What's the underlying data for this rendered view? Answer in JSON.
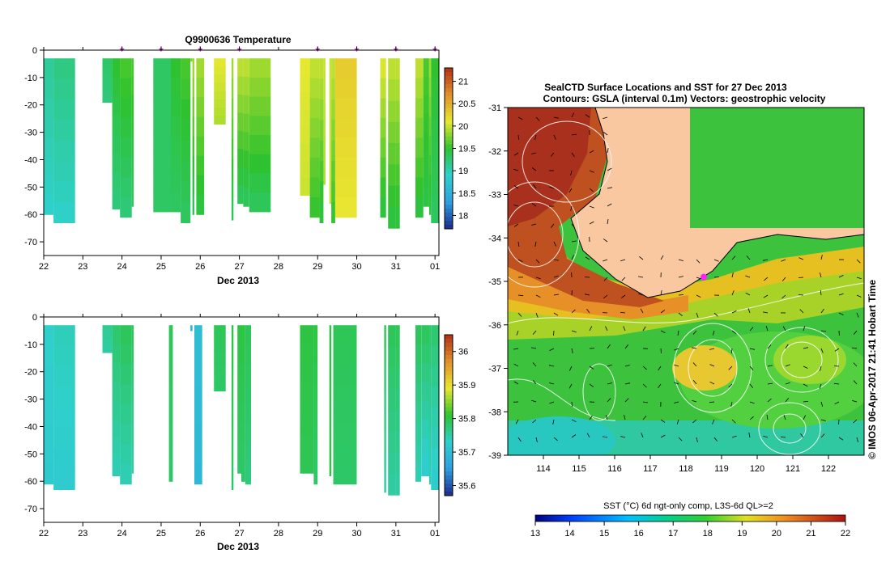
{
  "colors": {
    "tint_cold": "#1a2a8c",
    "tint_blue": "#2f9fe0",
    "tint_cyan": "#2fd0cc",
    "tint_green": "#2ec22e",
    "tint_yellow": "#e8e830",
    "tint_orange": "#e0902a",
    "tint_red": "#b03018",
    "land": "#f9c8a0",
    "profile_marker": "#c030c0",
    "location_marker": "#ff20ff"
  },
  "chart_data": [
    {
      "id": "temperature",
      "type": "heatmap",
      "title": "Q9900636  Temperature",
      "xlabel": "Dec 2013",
      "ylabel": "",
      "xlim": [
        22,
        32.1
      ],
      "ylim": [
        -75,
        0
      ],
      "x_ticks": [
        "22",
        "23",
        "24",
        "25",
        "26",
        "27",
        "28",
        "29",
        "30",
        "31",
        "01"
      ],
      "y_ticks": [
        "0",
        "-10",
        "-20",
        "-30",
        "-40",
        "-50",
        "-60",
        "-70"
      ],
      "colorbar": {
        "min": 17.7,
        "max": 21.3,
        "ticks": [
          "21",
          "20.5",
          "20",
          "19.5",
          "19",
          "18.5",
          "18"
        ]
      },
      "profile_markers": [
        24,
        25,
        26,
        27,
        29,
        30,
        31,
        32
      ],
      "columns": [
        {
          "x0": 22.0,
          "x1": 22.25,
          "bottom": -60,
          "top_value": 19.1,
          "bottom_value": 18.9
        },
        {
          "x0": 22.25,
          "x1": 22.8,
          "bottom": -63,
          "top_value": 19.2,
          "bottom_value": 18.9
        },
        {
          "x0": 23.5,
          "x1": 23.75,
          "bottom": -19,
          "top_value": 19.3,
          "bottom_value": 19.2
        },
        {
          "x0": 23.75,
          "x1": 23.95,
          "bottom": -58,
          "top_value": 19.5,
          "bottom_value": 19.2
        },
        {
          "x0": 23.95,
          "x1": 24.25,
          "bottom": -61,
          "top_value": 19.6,
          "bottom_value": 19.2
        },
        {
          "x0": 24.25,
          "x1": 24.3,
          "bottom": -57,
          "top_value": 19.6,
          "bottom_value": 19.3
        },
        {
          "x0": 24.8,
          "x1": 25.25,
          "bottom": -59,
          "top_value": 19.3,
          "bottom_value": 19.3
        },
        {
          "x0": 25.25,
          "x1": 25.5,
          "bottom": -59,
          "top_value": 19.5,
          "bottom_value": 19.3
        },
        {
          "x0": 25.5,
          "x1": 25.75,
          "bottom": -63,
          "top_value": 19.6,
          "bottom_value": 19.3
        },
        {
          "x0": 25.75,
          "x1": 25.8,
          "bottom": -4,
          "top_value": 19.8,
          "bottom_value": 19.8
        },
        {
          "x0": 25.8,
          "x1": 25.85,
          "bottom": -60,
          "top_value": 19.9,
          "bottom_value": 19.3
        },
        {
          "x0": 25.9,
          "x1": 26.1,
          "bottom": -60,
          "top_value": 19.9,
          "bottom_value": 19.4
        },
        {
          "x0": 26.35,
          "x1": 26.65,
          "bottom": -27,
          "top_value": 20.1,
          "bottom_value": 19.9
        },
        {
          "x0": 26.8,
          "x1": 26.85,
          "bottom": -62,
          "top_value": 19.9,
          "bottom_value": 19.3
        },
        {
          "x0": 26.95,
          "x1": 27.1,
          "bottom": -56,
          "top_value": 20.0,
          "bottom_value": 19.3
        },
        {
          "x0": 27.1,
          "x1": 27.25,
          "bottom": -57,
          "top_value": 20.0,
          "bottom_value": 19.3
        },
        {
          "x0": 27.25,
          "x1": 27.8,
          "bottom": -59,
          "top_value": 19.9,
          "bottom_value": 19.3
        },
        {
          "x0": 28.55,
          "x1": 28.8,
          "bottom": -53,
          "top_value": 20.1,
          "bottom_value": 20.0
        },
        {
          "x0": 28.8,
          "x1": 29.05,
          "bottom": -61,
          "top_value": 20.0,
          "bottom_value": 19.5
        },
        {
          "x0": 29.05,
          "x1": 29.15,
          "bottom": -63,
          "top_value": 20.0,
          "bottom_value": 19.4
        },
        {
          "x0": 29.15,
          "x1": 29.2,
          "bottom": -49,
          "top_value": 20.0,
          "bottom_value": 19.9
        },
        {
          "x0": 29.3,
          "x1": 29.35,
          "bottom": -56,
          "top_value": 20.0,
          "bottom_value": 20.0
        },
        {
          "x0": 29.35,
          "x1": 29.45,
          "bottom": -63,
          "top_value": 20.0,
          "bottom_value": 19.5
        },
        {
          "x0": 29.45,
          "x1": 30.0,
          "bottom": -61,
          "top_value": 20.3,
          "bottom_value": 20.1
        },
        {
          "x0": 30.6,
          "x1": 30.75,
          "bottom": -61,
          "top_value": 20.1,
          "bottom_value": 19.4
        },
        {
          "x0": 30.8,
          "x1": 31.0,
          "bottom": -65,
          "top_value": 20.0,
          "bottom_value": 19.4
        },
        {
          "x0": 31.0,
          "x1": 31.1,
          "bottom": -65,
          "top_value": 20.0,
          "bottom_value": 19.4
        },
        {
          "x0": 31.5,
          "x1": 31.7,
          "bottom": -61,
          "top_value": 20.0,
          "bottom_value": 19.4
        },
        {
          "x0": 31.7,
          "x1": 31.85,
          "bottom": -57,
          "top_value": 19.6,
          "bottom_value": 19.4
        },
        {
          "x0": 31.85,
          "x1": 31.9,
          "bottom": -60,
          "top_value": 19.9,
          "bottom_value": 19.4
        },
        {
          "x0": 31.9,
          "x1": 32.1,
          "bottom": -63,
          "top_value": 19.5,
          "bottom_value": 19.3
        }
      ]
    },
    {
      "id": "salinity",
      "type": "heatmap",
      "title": "",
      "xlabel": "Dec 2013",
      "ylabel": "",
      "xlim": [
        22,
        32.1
      ],
      "ylim": [
        -75,
        0
      ],
      "x_ticks": [
        "22",
        "23",
        "24",
        "25",
        "26",
        "27",
        "28",
        "29",
        "30",
        "31",
        "01"
      ],
      "y_ticks": [
        "0",
        "-10",
        "-20",
        "-30",
        "-40",
        "-50",
        "-60",
        "-70"
      ],
      "colorbar": {
        "min": 35.57,
        "max": 36.05,
        "ticks": [
          "36",
          "35.9",
          "35.8",
          "35.7",
          "35.6"
        ]
      },
      "columns": [
        {
          "x0": 22.0,
          "x1": 22.25,
          "bottom": -61,
          "top_value": 35.73,
          "bottom_value": 35.72
        },
        {
          "x0": 22.25,
          "x1": 22.8,
          "bottom": -63,
          "top_value": 35.74,
          "bottom_value": 35.72
        },
        {
          "x0": 23.5,
          "x1": 23.75,
          "bottom": -13,
          "top_value": 35.76,
          "bottom_value": 35.75
        },
        {
          "x0": 23.75,
          "x1": 23.95,
          "bottom": -58,
          "top_value": 35.78,
          "bottom_value": 35.74
        },
        {
          "x0": 23.95,
          "x1": 24.25,
          "bottom": -61,
          "top_value": 35.79,
          "bottom_value": 35.74
        },
        {
          "x0": 24.25,
          "x1": 24.3,
          "bottom": -57,
          "top_value": 35.79,
          "bottom_value": 35.75
        },
        {
          "x0": 25.2,
          "x1": 25.3,
          "bottom": -60,
          "top_value": 35.79,
          "bottom_value": 35.78
        },
        {
          "x0": 25.75,
          "x1": 25.8,
          "bottom": -5,
          "top_value": 35.68,
          "bottom_value": 35.68
        },
        {
          "x0": 25.85,
          "x1": 26.05,
          "bottom": -61,
          "top_value": 35.7,
          "bottom_value": 35.69
        },
        {
          "x0": 26.35,
          "x1": 26.65,
          "bottom": -27,
          "top_value": 35.79,
          "bottom_value": 35.78
        },
        {
          "x0": 26.8,
          "x1": 26.85,
          "bottom": -63,
          "top_value": 35.8,
          "bottom_value": 35.78
        },
        {
          "x0": 26.95,
          "x1": 27.05,
          "bottom": -57,
          "top_value": 35.8,
          "bottom_value": 35.78
        },
        {
          "x0": 27.05,
          "x1": 27.15,
          "bottom": -60,
          "top_value": 35.8,
          "bottom_value": 35.78
        },
        {
          "x0": 27.15,
          "x1": 27.3,
          "bottom": -61,
          "top_value": 35.79,
          "bottom_value": 35.77
        },
        {
          "x0": 28.55,
          "x1": 28.9,
          "bottom": -57,
          "top_value": 35.8,
          "bottom_value": 35.79
        },
        {
          "x0": 28.9,
          "x1": 29.0,
          "bottom": -61,
          "top_value": 35.8,
          "bottom_value": 35.78
        },
        {
          "x0": 29.3,
          "x1": 29.35,
          "bottom": -58,
          "top_value": 35.8,
          "bottom_value": 35.8
        },
        {
          "x0": 29.4,
          "x1": 30.0,
          "bottom": -61,
          "top_value": 35.79,
          "bottom_value": 35.78
        },
        {
          "x0": 30.7,
          "x1": 30.75,
          "bottom": -64,
          "top_value": 35.79,
          "bottom_value": 35.75
        },
        {
          "x0": 30.8,
          "x1": 31.0,
          "bottom": -65,
          "top_value": 35.79,
          "bottom_value": 35.75
        },
        {
          "x0": 31.0,
          "x1": 31.1,
          "bottom": -65,
          "top_value": 35.79,
          "bottom_value": 35.75
        },
        {
          "x0": 31.5,
          "x1": 31.65,
          "bottom": -60,
          "top_value": 35.79,
          "bottom_value": 35.74
        },
        {
          "x0": 31.65,
          "x1": 31.85,
          "bottom": -58,
          "top_value": 35.79,
          "bottom_value": 35.72
        },
        {
          "x0": 31.85,
          "x1": 31.9,
          "bottom": -61,
          "top_value": 35.78,
          "bottom_value": 35.74
        },
        {
          "x0": 31.9,
          "x1": 32.1,
          "bottom": -63,
          "top_value": 35.78,
          "bottom_value": 35.72
        }
      ]
    },
    {
      "id": "sst_map",
      "type": "heatmap",
      "title": "SealCTD Surface Locations and SST for 27 Dec 2013",
      "subtitle": "Contours: GSLA (interval 0.1m) Vectors: geostrophic velocity",
      "xlabel": "",
      "ylabel": "",
      "xlim": [
        113,
        123
      ],
      "ylim": [
        -39,
        -31
      ],
      "x_ticks": [
        "114",
        "115",
        "116",
        "117",
        "118",
        "119",
        "120",
        "121",
        "122"
      ],
      "y_ticks": [
        "-31",
        "-32",
        "-33",
        "-34",
        "-35",
        "-36",
        "-37",
        "-38",
        "-39"
      ],
      "colorbar_label": "SST (°C) 6d ngt-only comp, L3S-6d QL>=2",
      "colorbar": {
        "min": 13,
        "max": 22,
        "ticks": [
          "13",
          "14",
          "15",
          "16",
          "17",
          "18",
          "19",
          "20",
          "21",
          "22"
        ]
      },
      "locations": [
        {
          "lon": 118.5,
          "lat": -34.9
        }
      ],
      "side_label": "© IMOS 06-Apr-2017 21:41 Hobart Time"
    }
  ]
}
